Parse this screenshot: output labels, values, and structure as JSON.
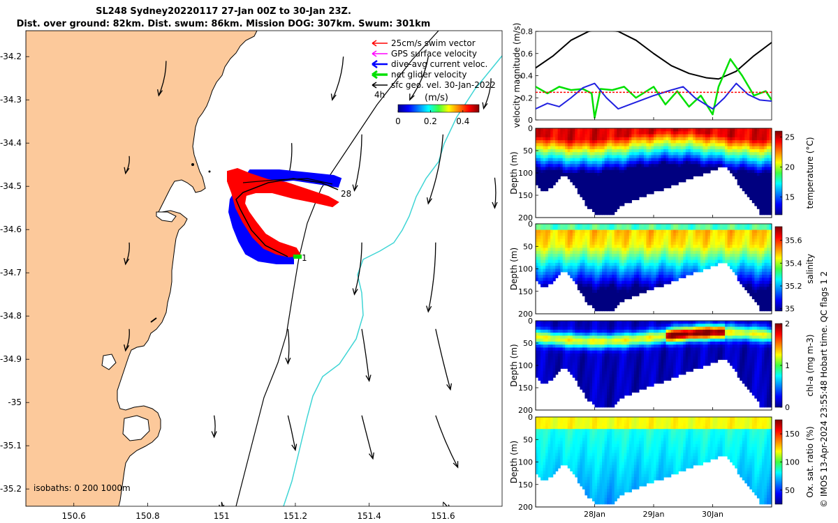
{
  "title": {
    "line1": "SL248 Sydney20220117 27-Jan 00Z to 30-Jan 23Z.",
    "line2": "Dist. over ground: 82km. Dist. swum: 86km. Mission DOG: 307km. Swum: 301km"
  },
  "credit": "© IMOS 13-Apr-2024 23:55:48 Hobart time. QC flags 1  2",
  "chart_data": [
    {
      "type": "map",
      "name": "glider track map",
      "x_ticks": [
        "150.6",
        "150.8",
        "151",
        "151.2",
        "151.4",
        "151.6"
      ],
      "x_tick_values": [
        150.6,
        150.8,
        151.0,
        151.2,
        151.4,
        151.6
      ],
      "y_ticks": [
        "-34.2",
        "-34.3",
        "-34.4",
        "-34.5",
        "-34.6",
        "-34.7",
        "-34.8",
        "-34.9",
        "-35",
        "-35.1",
        "-35.2"
      ],
      "y_tick_values": [
        -34.2,
        -34.3,
        -34.4,
        -34.5,
        -34.6,
        -34.7,
        -34.8,
        -34.9,
        -35.0,
        -35.1,
        -35.2
      ],
      "xlim": [
        150.47,
        151.76
      ],
      "ylim": [
        -35.24,
        -34.14
      ],
      "legend": [
        {
          "label": "25cm/s swim vector",
          "color": "#ff0000"
        },
        {
          "label": "GPS surface velocity",
          "color": "#ff00ff"
        },
        {
          "label": "dive-avg current veloc.",
          "color": "#0000ff"
        },
        {
          "label": "net glider velocity",
          "color": "#00e000"
        },
        {
          "label": "sfc geo. vel. 30-Jan-2022",
          "color": "#000000"
        }
      ],
      "time_label": "4h",
      "colorbar": {
        "title": "(m/s)",
        "ticks": [
          "0",
          "0.2",
          "0.4"
        ],
        "tick_values": [
          0,
          0.2,
          0.4
        ],
        "range": [
          0,
          0.5
        ]
      },
      "track_labels": [
        {
          "text": "28"
        },
        {
          "text": "1"
        }
      ],
      "isobath_text": "isobaths: 0  200  1000m",
      "track": [
        [
          151.28,
          -34.525
        ],
        [
          151.22,
          -34.5
        ],
        [
          151.13,
          -34.49
        ],
        [
          151.04,
          -34.505
        ],
        [
          151.01,
          -34.52
        ],
        [
          151.07,
          -34.6
        ],
        [
          151.15,
          -34.66
        ]
      ],
      "arrows": [
        {
          "lon": 150.85,
          "lat": -34.21,
          "dlon": -0.02,
          "dlat": -0.08
        },
        {
          "lon": 151.33,
          "lat": -34.2,
          "dlon": -0.03,
          "dlat": -0.1
        },
        {
          "lon": 151.56,
          "lat": -34.2,
          "dlon": -0.05,
          "dlat": -0.1
        },
        {
          "lon": 151.73,
          "lat": -34.25,
          "dlon": -0.02,
          "dlat": -0.07
        },
        {
          "lon": 150.75,
          "lat": -34.43,
          "dlon": -0.01,
          "dlat": -0.04
        },
        {
          "lon": 151.19,
          "lat": -34.4,
          "dlon": -0.01,
          "dlat": -0.08
        },
        {
          "lon": 151.38,
          "lat": -34.38,
          "dlon": -0.02,
          "dlat": -0.13
        },
        {
          "lon": 151.6,
          "lat": -34.38,
          "dlon": -0.04,
          "dlat": -0.16
        },
        {
          "lon": 151.74,
          "lat": -34.48,
          "dlon": 0.0,
          "dlat": -0.07
        },
        {
          "lon": 150.75,
          "lat": -34.63,
          "dlon": -0.01,
          "dlat": -0.05
        },
        {
          "lon": 151.38,
          "lat": -34.63,
          "dlon": -0.02,
          "dlat": -0.12
        },
        {
          "lon": 151.58,
          "lat": -34.63,
          "dlon": -0.02,
          "dlat": -0.16
        },
        {
          "lon": 150.75,
          "lat": -34.83,
          "dlon": -0.01,
          "dlat": -0.05
        },
        {
          "lon": 151.18,
          "lat": -34.83,
          "dlon": 0.0,
          "dlat": -0.08
        },
        {
          "lon": 151.38,
          "lat": -34.83,
          "dlon": 0.02,
          "dlat": -0.12
        },
        {
          "lon": 151.58,
          "lat": -34.83,
          "dlon": 0.04,
          "dlat": -0.14
        },
        {
          "lon": 150.98,
          "lat": -35.03,
          "dlon": 0.0,
          "dlat": -0.05
        },
        {
          "lon": 151.18,
          "lat": -35.03,
          "dlon": 0.02,
          "dlat": -0.08
        },
        {
          "lon": 151.38,
          "lat": -35.03,
          "dlon": 0.03,
          "dlat": -0.1
        },
        {
          "lon": 151.58,
          "lat": -35.03,
          "dlon": 0.06,
          "dlat": -0.12
        },
        {
          "lon": 151.0,
          "lat": -35.23,
          "dlon": 0.0,
          "dlat": -0.02
        },
        {
          "lon": 151.6,
          "lat": -35.23,
          "dlon": 0.02,
          "dlat": -0.02
        }
      ]
    },
    {
      "type": "line",
      "name": "velocity magnitude panel",
      "ylabel": "velocity magnitude (m/s)",
      "y_ticks": [
        "0",
        "0.2",
        "0.4",
        "0.6",
        "0.8"
      ],
      "y_tick_values": [
        0,
        0.2,
        0.4,
        0.6,
        0.8
      ],
      "ylim": [
        0,
        0.8
      ],
      "x_ticks": [
        "28Jan",
        "29Jan",
        "30Jan"
      ],
      "xlim": [
        27.0,
        31.0
      ],
      "series": [
        {
          "name": "sfc geo. vel.",
          "color": "#000000",
          "x": [
            27.0,
            27.3,
            27.6,
            27.9,
            28.1,
            28.4,
            28.7,
            29.0,
            29.3,
            29.6,
            29.9,
            30.1,
            30.4,
            30.7,
            31.0
          ],
          "y": [
            0.47,
            0.58,
            0.72,
            0.8,
            0.82,
            0.8,
            0.72,
            0.6,
            0.49,
            0.42,
            0.38,
            0.37,
            0.44,
            0.58,
            0.7
          ]
        },
        {
          "name": "net glider velocity",
          "color": "#00e000",
          "x": [
            27.0,
            27.2,
            27.4,
            27.6,
            27.8,
            27.95,
            28.0,
            28.1,
            28.3,
            28.5,
            28.7,
            29.0,
            29.2,
            29.4,
            29.6,
            29.8,
            30.0,
            30.1,
            30.3,
            30.5,
            30.7,
            30.9,
            31.0
          ],
          "y": [
            0.3,
            0.24,
            0.3,
            0.27,
            0.28,
            0.24,
            0.02,
            0.28,
            0.27,
            0.3,
            0.2,
            0.3,
            0.14,
            0.26,
            0.12,
            0.22,
            0.05,
            0.3,
            0.55,
            0.4,
            0.22,
            0.26,
            0.18
          ]
        },
        {
          "name": "dive-avg current veloc.",
          "color": "#2020e0",
          "x": [
            27.0,
            27.2,
            27.4,
            27.6,
            27.8,
            28.0,
            28.2,
            28.4,
            28.7,
            29.0,
            29.3,
            29.5,
            29.7,
            30.0,
            30.2,
            30.4,
            30.6,
            30.8,
            31.0
          ],
          "y": [
            0.1,
            0.15,
            0.12,
            0.2,
            0.29,
            0.33,
            0.2,
            0.1,
            0.16,
            0.22,
            0.27,
            0.3,
            0.2,
            0.1,
            0.2,
            0.33,
            0.23,
            0.18,
            0.17
          ]
        },
        {
          "name": "25cm/s swim vector",
          "color": "#ff0000",
          "x": [
            27.0,
            31.0
          ],
          "y": [
            0.25,
            0.25
          ]
        }
      ]
    },
    {
      "type": "heatmap",
      "name": "temperature section",
      "ylabel": "Depth (m)",
      "y_ticks": [
        "0",
        "50",
        "100",
        "150",
        "200"
      ],
      "colorbar_label": "temperature (°C)",
      "colorbar_ticks": [
        "15",
        "20",
        "25"
      ],
      "colorbar_tick_values": [
        15,
        20,
        25
      ],
      "clim": [
        12,
        26
      ]
    },
    {
      "type": "heatmap",
      "name": "salinity section",
      "ylabel": "Depth (m)",
      "y_ticks": [
        "0",
        "50",
        "100",
        "150",
        "200"
      ],
      "colorbar_label": "salinity",
      "colorbar_ticks": [
        "35",
        "35.2",
        "35.4",
        "35.6"
      ],
      "colorbar_tick_values": [
        35,
        35.2,
        35.4,
        35.6
      ],
      "clim": [
        34.98,
        35.72
      ]
    },
    {
      "type": "heatmap",
      "name": "chlorophyll section",
      "ylabel": "Depth (m)",
      "y_ticks": [
        "0",
        "50",
        "100",
        "150",
        "200"
      ],
      "colorbar_label": "chl-a (mg m-3)",
      "colorbar_ticks": [
        "0",
        "1",
        "2"
      ],
      "colorbar_tick_values": [
        0,
        1,
        2
      ],
      "clim": [
        0,
        2
      ]
    },
    {
      "type": "heatmap",
      "name": "oxygen saturation section",
      "ylabel": "Depth (m)",
      "y_ticks": [
        "0",
        "50",
        "100",
        "150",
        "200"
      ],
      "x_ticks": [
        "28Jan",
        "29Jan",
        "30Jan"
      ],
      "colorbar_label": "Ox. sat. ratio (%)",
      "colorbar_ticks": [
        "50",
        "100",
        "150"
      ],
      "colorbar_tick_values": [
        50,
        100,
        150
      ],
      "clim": [
        25,
        175
      ]
    }
  ]
}
